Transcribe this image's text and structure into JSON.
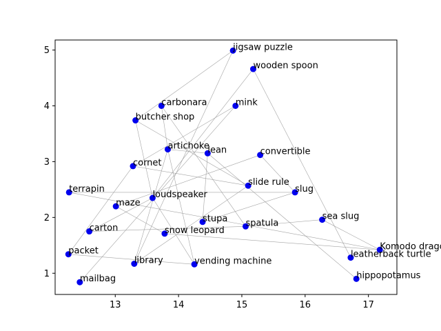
{
  "chart_data": {
    "type": "scatter",
    "title": "",
    "xlabel": "",
    "ylabel": "",
    "xlim": [
      12.05,
      17.45
    ],
    "ylim": [
      0.62,
      5.18
    ],
    "xticks": [
      13,
      14,
      15,
      16,
      17
    ],
    "yticks": [
      1,
      2,
      3,
      4,
      5
    ],
    "grid": false,
    "colors": {
      "point": "#0000ee",
      "edge": "#999999"
    },
    "points": [
      {
        "label": "jigsaw puzzle",
        "x": 14.86,
        "y": 4.99
      },
      {
        "label": "wooden spoon",
        "x": 15.18,
        "y": 4.66
      },
      {
        "label": "carbonara",
        "x": 13.73,
        "y": 4.0
      },
      {
        "label": "mink",
        "x": 14.9,
        "y": 4.0
      },
      {
        "label": "butcher shop",
        "x": 13.32,
        "y": 3.74
      },
      {
        "label": "artichoke",
        "x": 13.83,
        "y": 3.22
      },
      {
        "label": "lean",
        "x": 14.46,
        "y": 3.15
      },
      {
        "label": "convertible",
        "x": 15.29,
        "y": 3.12
      },
      {
        "label": "cornet",
        "x": 13.28,
        "y": 2.92
      },
      {
        "label": "slide rule",
        "x": 15.1,
        "y": 2.57
      },
      {
        "label": "slug",
        "x": 15.84,
        "y": 2.45
      },
      {
        "label": "terrapin",
        "x": 12.27,
        "y": 2.45
      },
      {
        "label": "loudspeaker",
        "x": 13.59,
        "y": 2.35
      },
      {
        "label": "maze",
        "x": 13.01,
        "y": 2.2
      },
      {
        "label": "sea slug",
        "x": 16.27,
        "y": 1.96
      },
      {
        "label": "stupa",
        "x": 14.38,
        "y": 1.92
      },
      {
        "label": "spatula",
        "x": 15.06,
        "y": 1.84
      },
      {
        "label": "carton",
        "x": 12.59,
        "y": 1.75
      },
      {
        "label": "snow leopard",
        "x": 13.78,
        "y": 1.71
      },
      {
        "label": "Komodo dragon",
        "x": 17.18,
        "y": 1.42
      },
      {
        "label": "packet",
        "x": 12.26,
        "y": 1.34
      },
      {
        "label": "leatherback turtle",
        "x": 16.72,
        "y": 1.28
      },
      {
        "label": "library",
        "x": 13.3,
        "y": 1.17
      },
      {
        "label": "vending machine",
        "x": 14.25,
        "y": 1.16
      },
      {
        "label": "mailbag",
        "x": 12.44,
        "y": 0.84
      },
      {
        "label": "hippopotamus",
        "x": 16.81,
        "y": 0.9
      }
    ],
    "edges": [
      [
        "jigsaw puzzle",
        "butcher shop"
      ],
      [
        "jigsaw puzzle",
        "library"
      ],
      [
        "wooden spoon",
        "leatherback turtle"
      ],
      [
        "wooden spoon",
        "loudspeaker"
      ],
      [
        "carbonara",
        "artichoke"
      ],
      [
        "carbonara",
        "spatula"
      ],
      [
        "mink",
        "cornet"
      ],
      [
        "mink",
        "mailbag"
      ],
      [
        "butcher shop",
        "loudspeaker"
      ],
      [
        "butcher shop",
        "slide rule"
      ],
      [
        "artichoke",
        "vending machine"
      ],
      [
        "artichoke",
        "lean"
      ],
      [
        "lean",
        "stupa"
      ],
      [
        "lean",
        "hippopotamus"
      ],
      [
        "convertible",
        "maze"
      ],
      [
        "convertible",
        "slug"
      ],
      [
        "cornet",
        "packet"
      ],
      [
        "cornet",
        "slide rule"
      ],
      [
        "slide rule",
        "library"
      ],
      [
        "terrapin",
        "slug"
      ],
      [
        "terrapin",
        "Komodo dragon"
      ],
      [
        "loudspeaker",
        "carton"
      ],
      [
        "loudspeaker",
        "vending machine"
      ],
      [
        "maze",
        "snow leopard"
      ],
      [
        "sea slug",
        "spatula"
      ],
      [
        "sea slug",
        "Komodo dragon"
      ],
      [
        "stupa",
        "slug"
      ],
      [
        "spatula",
        "carton"
      ],
      [
        "Komodo dragon",
        "snow leopard"
      ],
      [
        "packet",
        "vending machine"
      ],
      [
        "library",
        "artichoke"
      ]
    ]
  }
}
